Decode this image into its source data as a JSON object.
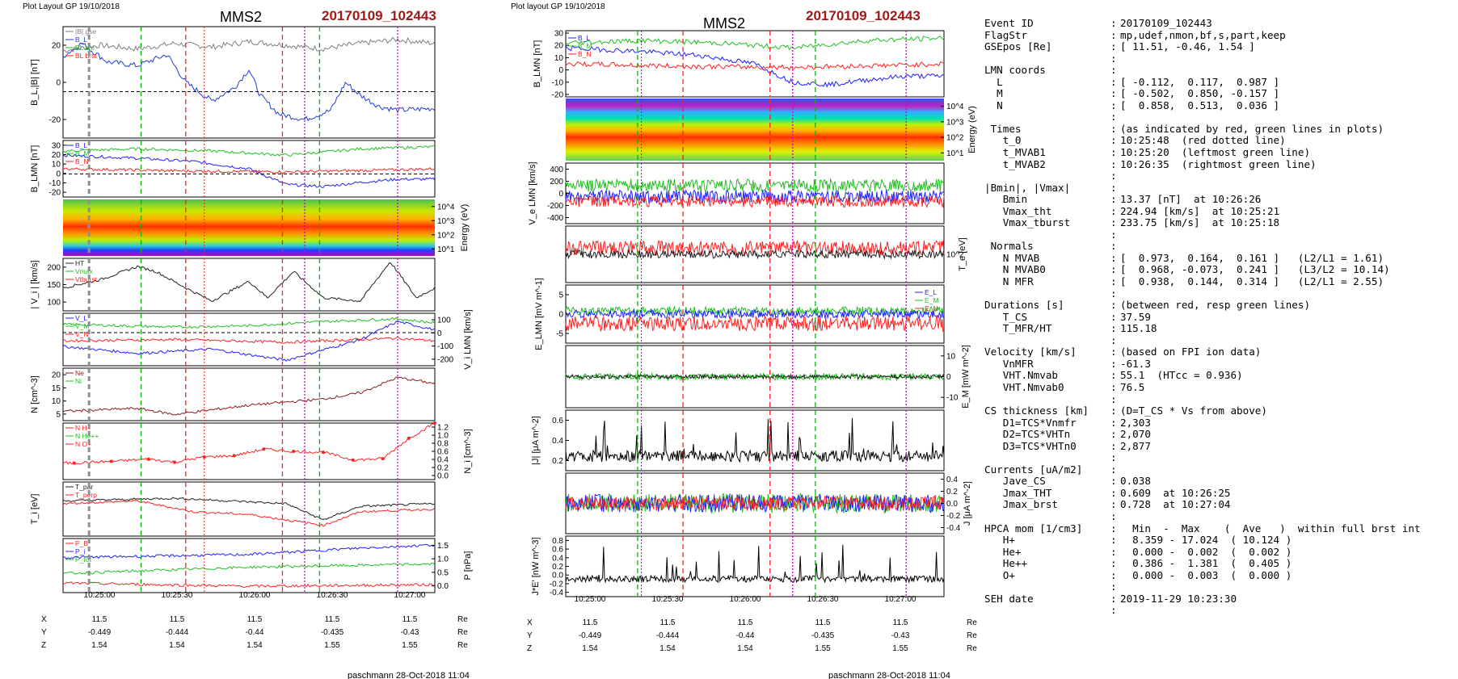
{
  "left_plot": {
    "header": "Plot Layout GP 19/10/2018",
    "sc": "MMS2",
    "event": "20170109_102443",
    "footer": "paschmann 28-Oct-2018 11:04",
    "time_ticks": [
      "10:25:00",
      "10:25:30",
      "10:26:00",
      "10:26:30",
      "10:27:00"
    ],
    "pos_rows": [
      {
        "label": "X",
        "values": [
          "11.5",
          "11.5",
          "11.5",
          "11.5",
          "11.5"
        ],
        "unit": "Re"
      },
      {
        "label": "Y",
        "values": [
          "-0.449",
          "-0.444",
          "-0.44",
          "-0.435",
          "-0.43"
        ],
        "unit": "Re"
      },
      {
        "label": "Z",
        "values": [
          "1.54",
          "1.54",
          "1.54",
          "1.55",
          "1.55"
        ],
        "unit": "Re"
      }
    ]
  },
  "right_plot": {
    "header": "Plot layout GP 19/10/2018",
    "sc": "MMS2",
    "event": "20170109_102443",
    "footer": "paschmann 28-Oct-2018 11:04",
    "time_ticks": [
      "10:25:00",
      "10:25:30",
      "10:26:00",
      "10:26:30",
      "10:27:00"
    ],
    "pos_rows": [
      {
        "label": "X",
        "values": [
          "11.5",
          "11.5",
          "11.5",
          "11.5",
          "11.5"
        ],
        "unit": "Re"
      },
      {
        "label": "Y",
        "values": [
          "-0.449",
          "-0.444",
          "-0.44",
          "-0.435",
          "-0.43"
        ],
        "unit": "Re"
      },
      {
        "label": "Z",
        "values": [
          "1.54",
          "1.54",
          "1.54",
          "1.55",
          "1.55"
        ],
        "unit": "Re"
      }
    ]
  },
  "chart_data": [
    {
      "type": "line",
      "panel": "B_L |B|",
      "ylabel": "B_L,|B| [nT]",
      "yticks": [
        "20",
        "0",
        "-20"
      ],
      "ylim": [
        -25,
        35
      ],
      "legend": [
        "|B| gse",
        "B_L",
        "BL sm",
        "BL brst"
      ],
      "series": [
        {
          "name": "|B| gse",
          "color": "#808080",
          "points": [
            [
              0,
              22
            ],
            [
              0.1,
              25
            ],
            [
              0.2,
              23
            ],
            [
              0.3,
              26
            ],
            [
              0.4,
              24
            ],
            [
              0.5,
              27
            ],
            [
              0.6,
              25
            ],
            [
              0.7,
              23
            ],
            [
              0.8,
              26
            ],
            [
              0.9,
              28
            ],
            [
              1,
              26
            ]
          ]
        },
        {
          "name": "B_L",
          "color": "#1f3fd6",
          "points": [
            [
              0,
              19
            ],
            [
              0.05,
              26
            ],
            [
              0.12,
              16
            ],
            [
              0.2,
              14
            ],
            [
              0.28,
              20
            ],
            [
              0.33,
              5
            ],
            [
              0.4,
              -5
            ],
            [
              0.46,
              2
            ],
            [
              0.5,
              12
            ],
            [
              0.53,
              -2
            ],
            [
              0.58,
              -12
            ],
            [
              0.65,
              -15
            ],
            [
              0.72,
              -10
            ],
            [
              0.76,
              5
            ],
            [
              0.8,
              -2
            ],
            [
              0.85,
              -8
            ],
            [
              0.9,
              -10
            ],
            [
              1,
              -9
            ]
          ]
        }
      ]
    },
    {
      "type": "line",
      "panel": "B_LMN",
      "ylabel": "B_LMN [nT]",
      "yticks": [
        "30",
        "20",
        "10",
        "0",
        "-10",
        "-20"
      ],
      "ylim": [
        -22,
        32
      ],
      "legend": [
        "B_L",
        "B_M",
        "B_N"
      ],
      "series": [
        {
          "name": "B_L",
          "color": "#2020ff",
          "points": [
            [
              0,
              18
            ],
            [
              0.2,
              15
            ],
            [
              0.35,
              12
            ],
            [
              0.5,
              5
            ],
            [
              0.6,
              -10
            ],
            [
              0.7,
              -12
            ],
            [
              0.8,
              -8
            ],
            [
              0.9,
              -5
            ],
            [
              1,
              -5
            ]
          ]
        },
        {
          "name": "B_M",
          "color": "#20c020",
          "points": [
            [
              0,
              22
            ],
            [
              0.2,
              24
            ],
            [
              0.4,
              22
            ],
            [
              0.6,
              18
            ],
            [
              0.8,
              24
            ],
            [
              1,
              26
            ]
          ]
        },
        {
          "name": "B_N",
          "color": "#ff2020",
          "points": [
            [
              0,
              5
            ],
            [
              0.3,
              3
            ],
            [
              0.6,
              2
            ],
            [
              0.9,
              4
            ],
            [
              1,
              5
            ]
          ]
        }
      ]
    },
    {
      "type": "heatmap",
      "panel": "ion energy spectrogram",
      "ylabel": "Energy (eV)",
      "yticks": [
        "10^4",
        "10^3",
        "10^2",
        "10^1"
      ]
    },
    {
      "type": "line",
      "panel": "|Vi|",
      "ylabel": "| V_i | [km/s]",
      "yticks": [
        "200",
        "150",
        "100"
      ],
      "ylim": [
        80,
        240
      ],
      "legend": [
        "HT",
        "Vmax",
        "Vtburst"
      ],
      "series": [
        {
          "name": "|Vi|",
          "color": "#202020",
          "points": [
            [
              0,
              150
            ],
            [
              0.1,
              175
            ],
            [
              0.2,
              215
            ],
            [
              0.25,
              200
            ],
            [
              0.33,
              150
            ],
            [
              0.4,
              110
            ],
            [
              0.5,
              170
            ],
            [
              0.55,
              120
            ],
            [
              0.62,
              200
            ],
            [
              0.7,
              120
            ],
            [
              0.8,
              110
            ],
            [
              0.88,
              230
            ],
            [
              0.95,
              120
            ],
            [
              1,
              150
            ]
          ]
        }
      ]
    },
    {
      "type": "line",
      "panel": "Vi LMN",
      "ylabel": "V_i LMN [km/s]",
      "yticks": [
        "100",
        "0",
        "-100",
        "-200"
      ],
      "ylim": [
        -240,
        140
      ],
      "legend": [
        "V_L",
        "V_M",
        "V_N"
      ],
      "series": [
        {
          "name": "V_L",
          "color": "#2020ff",
          "points": [
            [
              0,
              -100
            ],
            [
              0.2,
              -150
            ],
            [
              0.4,
              -120
            ],
            [
              0.6,
              -200
            ],
            [
              0.8,
              -50
            ],
            [
              0.9,
              80
            ],
            [
              1,
              20
            ]
          ]
        },
        {
          "name": "V_M",
          "color": "#20c020",
          "points": [
            [
              0,
              60
            ],
            [
              0.3,
              40
            ],
            [
              0.5,
              50
            ],
            [
              0.7,
              80
            ],
            [
              0.9,
              100
            ],
            [
              1,
              70
            ]
          ]
        },
        {
          "name": "V_N",
          "color": "#ff2020",
          "points": [
            [
              0,
              -60
            ],
            [
              0.3,
              -50
            ],
            [
              0.6,
              -70
            ],
            [
              0.9,
              -40
            ],
            [
              1,
              -60
            ]
          ]
        }
      ]
    },
    {
      "type": "line",
      "panel": "density",
      "ylabel": "N [cm^-3]",
      "yticks": [
        "20",
        "15",
        "10",
        "5"
      ],
      "ylim": [
        4,
        21
      ],
      "legend": [
        "Ne",
        "Ni"
      ],
      "series": [
        {
          "name": "Ni",
          "color": "#8b1a1a",
          "points": [
            [
              0,
              7
            ],
            [
              0.2,
              8
            ],
            [
              0.3,
              6
            ],
            [
              0.5,
              9
            ],
            [
              0.7,
              11
            ],
            [
              0.8,
              13
            ],
            [
              0.9,
              18
            ],
            [
              1,
              16
            ]
          ]
        }
      ]
    },
    {
      "type": "line",
      "panel": "HPCA N",
      "ylabel": "N_i [cm^-3]",
      "yticks": [
        "1.2",
        "1.0",
        "0.8",
        "0.6",
        "0.4",
        "0.2",
        "0.0"
      ],
      "ylim": [
        0,
        1.3
      ],
      "legend": [
        "N H+",
        "N He++",
        "N O+"
      ],
      "series": [
        {
          "name": "N He++",
          "color": "#ff2020",
          "points": [
            [
              0.03,
              0.38
            ],
            [
              0.13,
              0.42
            ],
            [
              0.23,
              0.47
            ],
            [
              0.3,
              0.4
            ],
            [
              0.38,
              0.52
            ],
            [
              0.46,
              0.55
            ],
            [
              0.54,
              0.7
            ],
            [
              0.62,
              0.65
            ],
            [
              0.7,
              0.63
            ],
            [
              0.78,
              0.45
            ],
            [
              0.86,
              0.48
            ],
            [
              0.93,
              0.95
            ],
            [
              1,
              1.3
            ]
          ]
        }
      ]
    },
    {
      "type": "line",
      "panel": "Ti",
      "ylabel": "T_i [eV]",
      "yticks": [],
      "legend": [
        "T_par",
        "T_perp"
      ],
      "series": [
        {
          "name": "T_par",
          "color": "#202020",
          "points": [
            [
              0,
              0.65
            ],
            [
              0.3,
              0.7
            ],
            [
              0.6,
              0.6
            ],
            [
              0.7,
              0.3
            ],
            [
              0.8,
              0.55
            ],
            [
              1,
              0.6
            ]
          ]
        },
        {
          "name": "T_perp",
          "color": "#ff2020",
          "points": [
            [
              0,
              0.6
            ],
            [
              0.2,
              0.65
            ],
            [
              0.35,
              0.45
            ],
            [
              0.5,
              0.4
            ],
            [
              0.7,
              0.2
            ],
            [
              0.8,
              0.45
            ],
            [
              1,
              0.5
            ]
          ]
        }
      ]
    },
    {
      "type": "line",
      "panel": "pressure",
      "ylabel": "P [nPa]",
      "yticks": [
        "1.5",
        "1.0",
        "0.5",
        "0.0"
      ],
      "ylim": [
        0,
        1.7
      ],
      "legend": [
        "P_B",
        "P_i",
        "P_tot"
      ],
      "series": [
        {
          "name": "P_B",
          "color": "#ff2020",
          "points": [
            [
              0,
              0.3
            ],
            [
              0.5,
              0.2
            ],
            [
              1,
              0.25
            ]
          ]
        },
        {
          "name": "P_i",
          "color": "#2020ff",
          "points": [
            [
              0,
              1.1
            ],
            [
              0.5,
              1.2
            ],
            [
              0.8,
              1.4
            ],
            [
              1,
              1.5
            ]
          ]
        },
        {
          "name": "P_tot",
          "color": "#20c020",
          "points": [
            [
              0,
              0.6
            ],
            [
              0.5,
              0.8
            ],
            [
              1,
              0.9
            ]
          ]
        }
      ]
    },
    {
      "type": "line",
      "panel": "E field",
      "ylabel": "E_LMN [mV m^-1]",
      "yticks": [
        "5",
        "0",
        "-5"
      ],
      "ylim": [
        -7,
        7
      ],
      "legend": [
        "E_L",
        "E_M",
        "E_N"
      ]
    },
    {
      "type": "line",
      "panel": "J",
      "ylabel": "|J| [μA m^-2]",
      "yticks": [
        "0.6",
        "0.4",
        "0.2"
      ],
      "ylim": [
        0,
        0.7
      ],
      "legend": [
        "|J|"
      ]
    },
    {
      "type": "line",
      "panel": "J*E'",
      "ylabel": "J*E' [nW m^-3]",
      "yticks": [
        "0.8",
        "0.6",
        "0.4",
        "0.2",
        "0.0",
        "-0.2",
        "-0.4"
      ],
      "ylim": [
        -0.45,
        0.85
      ],
      "legend": [
        "J*E'"
      ]
    }
  ],
  "info": [
    {
      "k": "Event ID",
      "v": "20170109_102443"
    },
    {
      "k": "FlagStr",
      "v": "mp,udef,nmon,bf,s,part,keep"
    },
    {
      "k": "GSEpos [Re]",
      "v": "[ 11.51, -0.46, 1.54 ]"
    },
    {
      "k": "",
      "v": ""
    },
    {
      "k": "LMN coords",
      "v": ""
    },
    {
      "k": "  L",
      "v": "[ -0.112,  0.117,  0.987 ]"
    },
    {
      "k": "  M",
      "v": "[ -0.502,  0.850, -0.157 ]"
    },
    {
      "k": "  N",
      "v": "[  0.858,  0.513,  0.036 ]"
    },
    {
      "k": "",
      "v": ""
    },
    {
      "k": " Times",
      "v": "(as indicated by red, green lines in plots)"
    },
    {
      "k": "   t_0",
      "v": "10:25:48  (red dotted line)"
    },
    {
      "k": "   t_MVAB1",
      "v": "10:25:20  (leftmost green line)"
    },
    {
      "k": "   t_MVAB2",
      "v": "10:26:35  (rightmost green line)"
    },
    {
      "k": "",
      "v": ""
    },
    {
      "k": "|Bmin|, |Vmax|",
      "v": ""
    },
    {
      "k": "   Bmin",
      "v": "13.37 [nT]  at 10:26:26"
    },
    {
      "k": "   Vmax_tht",
      "v": "224.94 [km/s]  at 10:25:21"
    },
    {
      "k": "   Vmax_tburst",
      "v": "233.75 [km/s]  at 10:25:18"
    },
    {
      "k": "",
      "v": ""
    },
    {
      "k": " Normals",
      "v": ""
    },
    {
      "k": "   N MVAB",
      "v": "[  0.973,  0.164,  0.161 ]   (L2/L1 = 1.61)"
    },
    {
      "k": "   N MVAB0",
      "v": "[  0.968, -0.073,  0.241 ]   (L3/L2 = 10.14)"
    },
    {
      "k": "   N MFR",
      "v": "[  0.938,  0.144,  0.314 ]   (L2/L1 = 2.55)"
    },
    {
      "k": "",
      "v": ""
    },
    {
      "k": "Durations [s]",
      "v": "(between red, resp green lines)"
    },
    {
      "k": "   T_CS",
      "v": "37.59"
    },
    {
      "k": "   T_MFR/HT",
      "v": "115.18"
    },
    {
      "k": "",
      "v": ""
    },
    {
      "k": "Velocity [km/s]",
      "v": "(based on FPI ion data)"
    },
    {
      "k": "   VnMFR",
      "v": "-61.3"
    },
    {
      "k": "   VHT.Nmvab",
      "v": "55.1  (HTcc = 0.936)"
    },
    {
      "k": "   VHT.Nmvab0",
      "v": "76.5"
    },
    {
      "k": "",
      "v": ""
    },
    {
      "k": "CS thickness [km]",
      "v": "(D=T_CS * Vs from above)"
    },
    {
      "k": "   D1=TCS*Vnmfr",
      "v": "2,303"
    },
    {
      "k": "   D2=TCS*VHTn",
      "v": "2,070"
    },
    {
      "k": "   D3=TCS*VHTn0",
      "v": "2,877"
    },
    {
      "k": "",
      "v": ""
    },
    {
      "k": "Currents [uA/m2]",
      "v": ""
    },
    {
      "k": "   Jave_CS",
      "v": "0.038"
    },
    {
      "k": "   Jmax_THT",
      "v": "0.609  at 10:26:25"
    },
    {
      "k": "   Jmax_brst",
      "v": "0.728  at 10:27:04"
    },
    {
      "k": "",
      "v": ""
    },
    {
      "k": "HPCA mom [1/cm3]",
      "v": "  Min  -  Max    (  Ave   )  within full brst int"
    },
    {
      "k": "   H+",
      "v": "  8.359 - 17.024  ( 10.124 )"
    },
    {
      "k": "   He+",
      "v": "  0.000 -  0.002  (  0.002 )"
    },
    {
      "k": "   He++",
      "v": "  0.386 -  1.381  (  0.405 )"
    },
    {
      "k": "   O+",
      "v": "  0.000 -  0.003  (  0.000 )"
    },
    {
      "k": "",
      "v": ""
    },
    {
      "k": "SEH date",
      "v": "2019-11-29 10:23:30"
    },
    {
      "k": "",
      "v": ""
    }
  ],
  "colors": {
    "title_red": "#a01818",
    "bl_blue": "#1f3fd6",
    "green": "#20c020",
    "red": "#ff2020",
    "blue": "#2020ff"
  }
}
